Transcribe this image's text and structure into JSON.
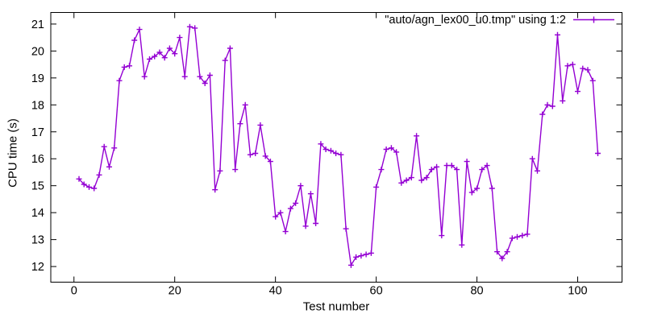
{
  "window": {
    "background": "#ffffff",
    "foreground": "#000000"
  },
  "chart_data": {
    "type": "line",
    "title": "",
    "xlabel": "Test number",
    "ylabel": "CPU time (s)",
    "grid": false,
    "axis_color": "#000000",
    "tick_style": "inward-mirrored",
    "x_ticks": [
      0,
      20,
      40,
      60,
      80,
      100
    ],
    "y_ticks": [
      12,
      13,
      14,
      15,
      16,
      17,
      18,
      19,
      20,
      21
    ],
    "xlim": [
      -4.6,
      108.8
    ],
    "ylim": [
      11.42,
      21.43
    ],
    "legend": {
      "label": "\"auto/agn_lex00_u0.tmp\" using 1:2",
      "position": "top-right",
      "color": "#9400d3",
      "marker": "plus"
    },
    "series": [
      {
        "name": "\"auto/agn_lex00_u0.tmp\" using 1:2",
        "color": "#9400d3",
        "marker": "plus",
        "x_start": 1,
        "x_step": 1,
        "values": [
          15.25,
          15.05,
          14.95,
          14.9,
          15.4,
          16.45,
          15.7,
          16.4,
          18.9,
          19.4,
          19.45,
          20.4,
          20.8,
          19.05,
          19.7,
          19.8,
          19.95,
          19.75,
          20.1,
          19.9,
          20.5,
          19.05,
          20.9,
          20.85,
          19.05,
          18.8,
          19.1,
          14.85,
          15.55,
          19.65,
          20.1,
          15.6,
          17.3,
          18.0,
          16.15,
          16.2,
          17.25,
          16.1,
          15.9,
          13.85,
          14.0,
          13.3,
          14.15,
          14.35,
          15.0,
          13.5,
          14.7,
          13.6,
          16.55,
          16.35,
          16.3,
          16.2,
          16.15,
          13.4,
          12.05,
          12.35,
          12.4,
          12.45,
          12.5,
          14.95,
          15.6,
          16.35,
          16.4,
          16.25,
          15.1,
          15.2,
          15.3,
          16.85,
          15.2,
          15.3,
          15.6,
          15.7,
          13.15,
          15.75,
          15.75,
          15.6,
          12.8,
          15.9,
          14.75,
          14.9,
          15.6,
          15.75,
          14.9,
          12.55,
          12.3,
          12.55,
          13.05,
          13.1,
          13.15,
          13.2,
          16.0,
          15.55,
          17.65,
          18.0,
          17.95,
          20.6,
          18.15,
          19.45,
          19.5,
          18.5,
          19.35,
          19.3,
          18.9,
          16.2
        ]
      }
    ]
  }
}
